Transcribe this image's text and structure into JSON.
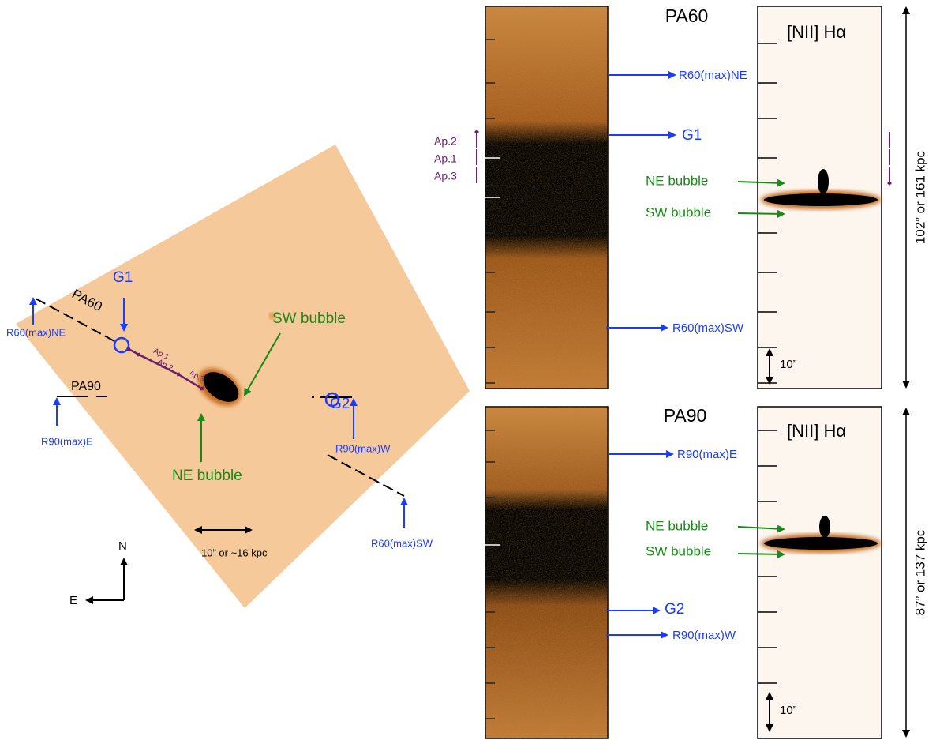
{
  "image_panel": {
    "g1": "G1",
    "pa60": "PA60",
    "r60_ne": "R60(max)NE",
    "pa90": "PA90",
    "r90_e": "R90(max)E",
    "sw_bubble": "SW bubble",
    "ap1": "Ap.1",
    "ap2": "Ap.2",
    "ap3": "Ap.3",
    "ne_bubble": "NE bubble",
    "g2": "G2",
    "r90_w": "R90(max)W",
    "r60_sw": "R60(max)SW",
    "scale": "10” or ~16 kpc",
    "north": "N",
    "east": "E"
  },
  "pa60_panel": {
    "title": "PA60",
    "line_label": "[NII] Hα",
    "r60_ne": "R60(max)NE",
    "g1": "G1",
    "r60_sw": "R60(max)SW",
    "ap2": "Ap.2",
    "ap1": "Ap.1",
    "ap3": "Ap.3",
    "ne_bubble": "NE bubble",
    "sw_bubble": "SW bubble",
    "scale": "10”",
    "extent": "102” or 161 kpc"
  },
  "pa90_panel": {
    "title": "PA90",
    "line_label": "[NII] Hα",
    "r90_e": "R90(max)E",
    "ne_bubble": "NE bubble",
    "sw_bubble": "SW bubble",
    "g2": "G2",
    "r90_w": "R90(max)W",
    "scale": "10”",
    "extent": "87” or 137 kpc"
  }
}
